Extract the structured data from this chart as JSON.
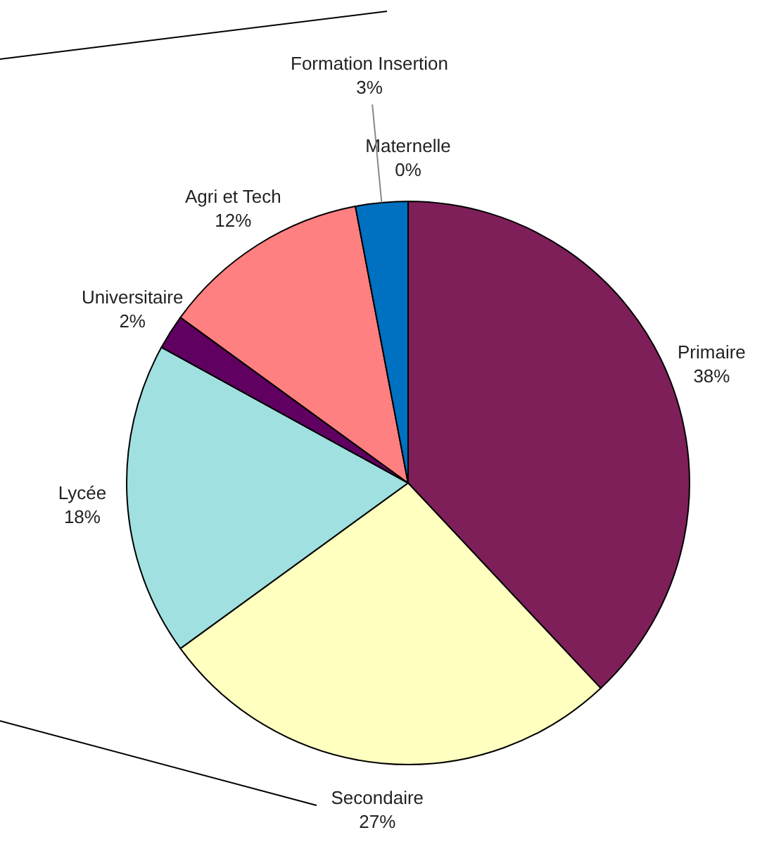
{
  "chart_data": {
    "type": "pie",
    "categories": [
      "Maternelle",
      "Primaire",
      "Secondaire",
      "Lycée",
      "Universitaire",
      "Agri et Tech",
      "Formation Insertion"
    ],
    "values": [
      0,
      38,
      27,
      18,
      2,
      12,
      3
    ],
    "colors": [
      "#1f3f8f",
      "#7f1f5a",
      "#ffffc0",
      "#a0e0e0",
      "#600060",
      "#ff8080",
      "#0070c0"
    ],
    "value_labels": [
      "0%",
      "38%",
      "27%",
      "18%",
      "2%",
      "12%",
      "3%"
    ]
  }
}
